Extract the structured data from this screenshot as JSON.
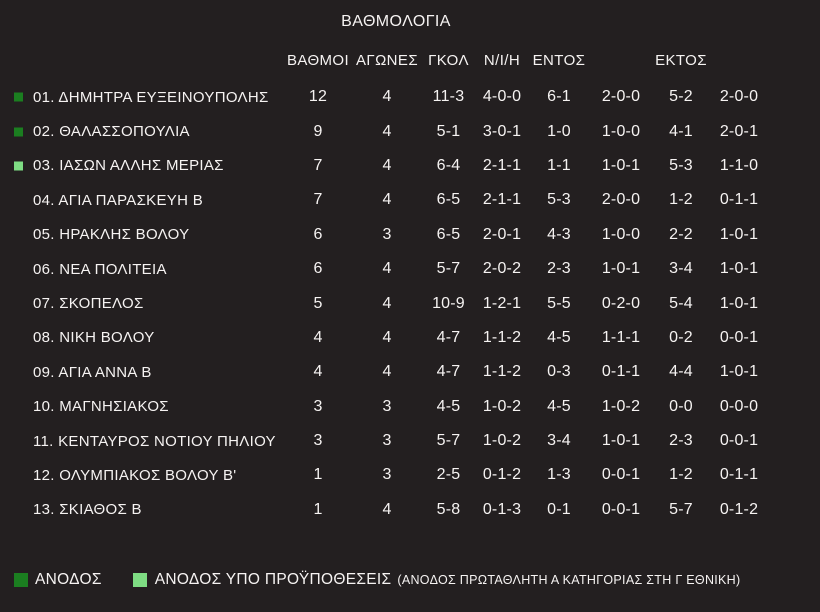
{
  "title": "ΒΑΘΜΟΛΟΓΙΑ",
  "columns": {
    "points": "ΒΑΘΜΟΙ",
    "games": "ΑΓΩΝΕΣ",
    "goals": "ΓΚΟΛ",
    "record": "Ν/Ι/Η",
    "home": "ΕΝΤΟΣ",
    "away": "ΕΚΤΟΣ"
  },
  "rows": [
    {
      "marker": "promotion",
      "name": "01. ΔΗΜΗΤΡΑ ΕΥΞΕΙΝΟΥΠΟΛΗΣ",
      "points": "12",
      "games": "4",
      "goals": "11-3",
      "record": "4-0-0",
      "home_goals": "6-1",
      "home_record": "2-0-0",
      "away_goals": "5-2",
      "away_record": "2-0-0"
    },
    {
      "marker": "promotion",
      "name": "02. ΘΑΛΑΣΣΟΠΟΥΛΙΑ",
      "points": "9",
      "games": "4",
      "goals": "5-1",
      "record": "3-0-1",
      "home_goals": "1-0",
      "home_record": "1-0-0",
      "away_goals": "4-1",
      "away_record": "2-0-1"
    },
    {
      "marker": "conditional",
      "name": "03. ΙΑΣΩΝ ΑΛΛΗΣ ΜΕΡΙΑΣ",
      "points": "7",
      "games": "4",
      "goals": "6-4",
      "record": "2-1-1",
      "home_goals": "1-1",
      "home_record": "1-0-1",
      "away_goals": "5-3",
      "away_record": "1-1-0"
    },
    {
      "marker": null,
      "name": "04. ΑΓΙΑ ΠΑΡΑΣΚΕΥΗ Β",
      "points": "7",
      "games": "4",
      "goals": "6-5",
      "record": "2-1-1",
      "home_goals": "5-3",
      "home_record": "2-0-0",
      "away_goals": "1-2",
      "away_record": "0-1-1"
    },
    {
      "marker": null,
      "name": "05. ΗΡΑΚΛΗΣ ΒΟΛΟΥ",
      "points": "6",
      "games": "3",
      "goals": "6-5",
      "record": "2-0-1",
      "home_goals": "4-3",
      "home_record": "1-0-0",
      "away_goals": "2-2",
      "away_record": "1-0-1"
    },
    {
      "marker": null,
      "name": "06. ΝΕΑ ΠΟΛΙΤΕΙΑ",
      "points": "6",
      "games": "4",
      "goals": "5-7",
      "record": "2-0-2",
      "home_goals": "2-3",
      "home_record": "1-0-1",
      "away_goals": "3-4",
      "away_record": "1-0-1"
    },
    {
      "marker": null,
      "name": "07. ΣΚΟΠΕΛΟΣ",
      "points": "5",
      "games": "4",
      "goals": "10-9",
      "record": "1-2-1",
      "home_goals": "5-5",
      "home_record": "0-2-0",
      "away_goals": "5-4",
      "away_record": "1-0-1"
    },
    {
      "marker": null,
      "name": "08. ΝΙΚΗ ΒΟΛΟΥ",
      "points": "4",
      "games": "4",
      "goals": "4-7",
      "record": "1-1-2",
      "home_goals": "4-5",
      "home_record": "1-1-1",
      "away_goals": "0-2",
      "away_record": "0-0-1"
    },
    {
      "marker": null,
      "name": "09. ΑΓΙΑ ΑΝΝΑ Β",
      "points": "4",
      "games": "4",
      "goals": "4-7",
      "record": "1-1-2",
      "home_goals": "0-3",
      "home_record": "0-1-1",
      "away_goals": "4-4",
      "away_record": "1-0-1"
    },
    {
      "marker": null,
      "name": "10. ΜΑΓΝΗΣΙΑΚΟΣ",
      "points": "3",
      "games": "3",
      "goals": "4-5",
      "record": "1-0-2",
      "home_goals": "4-5",
      "home_record": "1-0-2",
      "away_goals": "0-0",
      "away_record": "0-0-0"
    },
    {
      "marker": null,
      "name": "11. ΚΕΝΤΑΥΡΟΣ ΝΟΤΙΟΥ ΠΗΛΙΟΥ",
      "points": "3",
      "games": "3",
      "goals": "5-7",
      "record": "1-0-2",
      "home_goals": "3-4",
      "home_record": "1-0-1",
      "away_goals": "2-3",
      "away_record": "0-0-1"
    },
    {
      "marker": null,
      "name": "12. ΟΛΥΜΠΙΑΚΟΣ ΒΟΛΟΥ Β'",
      "points": "1",
      "games": "3",
      "goals": "2-5",
      "record": "0-1-2",
      "home_goals": "1-3",
      "home_record": "0-0-1",
      "away_goals": "1-2",
      "away_record": "0-1-1"
    },
    {
      "marker": null,
      "name": "13. ΣΚΙΑΘΟΣ Β",
      "points": "1",
      "games": "4",
      "goals": "5-8",
      "record": "0-1-3",
      "home_goals": "0-1",
      "home_record": "0-0-1",
      "away_goals": "5-7",
      "away_record": "0-1-2"
    }
  ],
  "legend": {
    "promotion_label": "ΑΝΟΔΟΣ",
    "conditional_label": "ΑΝΟΔΟΣ ΥΠΟ ΠΡΟΫΠΟΘΕΣΕΙΣ",
    "conditional_note": "(ΑΝΟΔΟΣ ΠΡΩΤΑΘΛΗΤΗ Α ΚΑΤΗΓΟΡΙΑΣ ΣΤΗ Γ ΕΘΝΙΚΗ)"
  },
  "colors": {
    "background": "#231f20",
    "text": "#f6f3f2",
    "promotion_green": "#1b7e20",
    "conditional_green": "#7edc83"
  }
}
